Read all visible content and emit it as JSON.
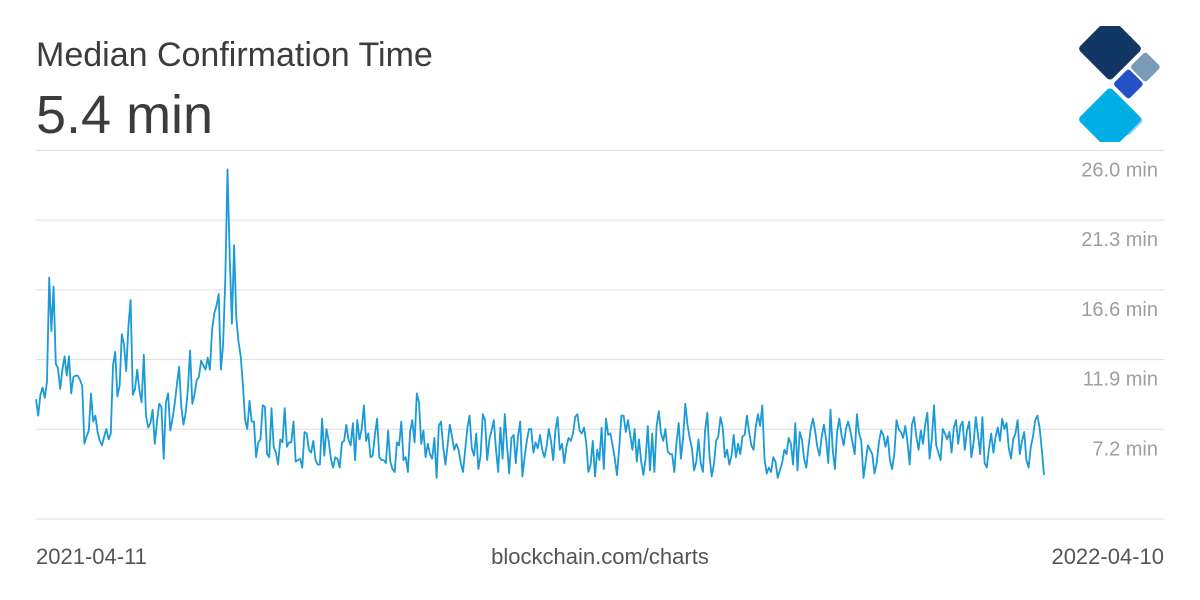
{
  "header": {
    "title": "Median Confirmation Time",
    "current_value": "5.4 min"
  },
  "footer": {
    "start_date": "2021-04-11",
    "source": "blockchain.com/charts",
    "end_date": "2022-04-10"
  },
  "colors": {
    "line": "#1a9ad6",
    "grid": "#dddddd",
    "tick_text": "#9e9e9e",
    "logo_dark": "#123764",
    "logo_grey": "#7a9ab5",
    "logo_blue": "#2450c8",
    "logo_light": "#a9d4ee",
    "logo_cyan": "#00aee6"
  },
  "chart_data": {
    "type": "line",
    "x_range": [
      "2021-04-11",
      "2022-04-10"
    ],
    "ylim": [
      2.5,
      26.5
    ],
    "y_ticks": [
      26.0,
      21.3,
      16.6,
      11.9,
      7.2
    ],
    "y_tick_labels": [
      "26.0 min",
      "21.3 min",
      "16.6 min",
      "11.9 min",
      "7.2 min"
    ],
    "grid": true,
    "series": [
      {
        "values": [
          10.5,
          9.4,
          10.8,
          11.3,
          10.6,
          11.7,
          18.7,
          15.1,
          18.1,
          12.9,
          12.6,
          11.2,
          12.5,
          13.4,
          12.1,
          13.4,
          10.9,
          12.0,
          12.1,
          12.1,
          11.8,
          11.4,
          7.5,
          8.0,
          8.4,
          10.9,
          9.0,
          9.4,
          8.3,
          7.7,
          7.4,
          8.0,
          8.5,
          7.8,
          8.2,
          12.8,
          13.7,
          10.7,
          11.4,
          14.9,
          14.2,
          12.4,
          15.4,
          17.2,
          10.8,
          11.2,
          12.5,
          11.1,
          10.3,
          13.5,
          9.4,
          8.6,
          8.9,
          9.8,
          7.5,
          9.0,
          10.2,
          10.0,
          6.5,
          10.3,
          10.9,
          8.4,
          9.2,
          10.2,
          11.5,
          12.7,
          10.0,
          8.8,
          9.6,
          11.2,
          13.8,
          10.2,
          10.8,
          11.8,
          12.0,
          13.1,
          12.8,
          12.5,
          13.3,
          12.5,
          15.2,
          16.3,
          16.8,
          17.6,
          12.5,
          14.2,
          18.6,
          26.0,
          20.2,
          15.6,
          20.9,
          16.0,
          14.4,
          13.4,
          11.5,
          9.1,
          8.5,
          10.4,
          9.0,
          9.0,
          6.6,
          7.6,
          7.8,
          10.1,
          10.0,
          6.8,
          6.6,
          9.9,
          7.3,
          6.9,
          6.1,
          7.8,
          7.6,
          9.9,
          7.3,
          7.6,
          7.6,
          9.0,
          6.3,
          6.4,
          6.5,
          5.9,
          8.3,
          8.2,
          7.1,
          6.9,
          7.7,
          6.4,
          6.1,
          6.1,
          9.2,
          6.7,
          8.5,
          7.7,
          6.5,
          5.9,
          6.6,
          6.5,
          5.9,
          7.6,
          7.7,
          8.8,
          7.8,
          7.4,
          8.9,
          6.4,
          9.1,
          7.8,
          8.5,
          10.1,
          7.7,
          8.2,
          6.6,
          6.7,
          8.1,
          9.2,
          6.6,
          6.4,
          6.4,
          6.2,
          8.4,
          6.3,
          5.8,
          5.6,
          7.6,
          7.4,
          9.0,
          6.4,
          6.6,
          5.6,
          8.3,
          9.1,
          7.6,
          10.9,
          10.3,
          7.5,
          8.4,
          6.6,
          7.5,
          6.8,
          6.5,
          7.9,
          5.2,
          8.7,
          9.0,
          7.3,
          6.1,
          7.4,
          8.8,
          8.0,
          7.1,
          7.5,
          7.1,
          6.2,
          5.6,
          7.1,
          8.6,
          9.4,
          7.2,
          6.7,
          8.2,
          5.8,
          6.7,
          9.5,
          9.1,
          6.4,
          7.8,
          8.4,
          9.1,
          7.1,
          5.6,
          8.6,
          6.5,
          9.5,
          7.4,
          5.5,
          7.9,
          8.1,
          6.2,
          8.0,
          9.0,
          5.3,
          6.6,
          7.7,
          8.5,
          8.5,
          6.9,
          7.6,
          7.2,
          8.1,
          7.1,
          6.6,
          7.3,
          8.5,
          7.7,
          6.4,
          8.4,
          9.3,
          7.1,
          7.5,
          6.2,
          7.3,
          7.9,
          7.7,
          8.2,
          9.3,
          9.5,
          8.4,
          8.2,
          8.6,
          7.6,
          5.6,
          6.1,
          7.7,
          5.3,
          7.1,
          6.4,
          8.6,
          5.8,
          9.2,
          8.1,
          8.2,
          7.4,
          6.5,
          5.4,
          7.2,
          9.4,
          9.4,
          8.3,
          9.1,
          8.1,
          7.1,
          8.5,
          6.3,
          7.8,
          6.3,
          5.4,
          6.5,
          8.7,
          5.7,
          8.2,
          5.6,
          8.7,
          9.7,
          8.2,
          7.7,
          8.5,
          7.0,
          6.8,
          6.8,
          5.6,
          7.6,
          8.9,
          6.5,
          7.9,
          10.2,
          8.8,
          7.9,
          7.2,
          5.7,
          6.3,
          7.8,
          6.2,
          5.6,
          8.4,
          9.6,
          6.7,
          5.3,
          6.1,
          7.7,
          8.0,
          9.3,
          8.6,
          6.6,
          7.1,
          6.1,
          6.7,
          8.1,
          6.6,
          7.5,
          6.8,
          8.0,
          8.1,
          9.4,
          8.3,
          7.4,
          7.1,
          8.6,
          9.5,
          8.7,
          10.1,
          6.5,
          5.5,
          5.9,
          5.6,
          6.6,
          6.3,
          5.2,
          5.7,
          6.2,
          7.1,
          6.8,
          7.9,
          7.5,
          6.1,
          8.9,
          5.7,
          8.3,
          7.8,
          6.5,
          5.9,
          7.3,
          8.5,
          9.2,
          8.4,
          7.3,
          6.7,
          8.0,
          8.8,
          7.8,
          6.2,
          9.8,
          7.1,
          5.8,
          8.3,
          9.2,
          8.1,
          7.4,
          8.5,
          9.0,
          8.4,
          7.6,
          6.8,
          9.5,
          8.2,
          7.7,
          5.2,
          6.3,
          7.4,
          7.1,
          6.8,
          5.5,
          6.2,
          7.6,
          8.4,
          8.1,
          7.3,
          8.0,
          6.4,
          5.8,
          6.8,
          9.1,
          8.5,
          8.3,
          7.9,
          8.7,
          7.6,
          6.1,
          8.8,
          9.3,
          8.0,
          7.1,
          8.4,
          7.5,
          8.8,
          9.6,
          6.5,
          7.8,
          10.1,
          7.4,
          6.9,
          6.4,
          8.5,
          8.2,
          7.8,
          8.3,
          6.9,
          8.6,
          9.1,
          7.5,
          8.7,
          9.0,
          7.1,
          8.4,
          9.0,
          6.6,
          7.6,
          9.3,
          8.1,
          6.8,
          9.3,
          6.2,
          5.9,
          7.2,
          8.2,
          6.9,
          8.0,
          8.6,
          7.7,
          9.2,
          8.5,
          8.9,
          7.2,
          6.5,
          7.8,
          8.2,
          9.1,
          6.8,
          7.7,
          8.3,
          6.4,
          5.9,
          7.3,
          8.0,
          9.1,
          9.4,
          8.6,
          7.1,
          5.4
        ]
      }
    ]
  }
}
